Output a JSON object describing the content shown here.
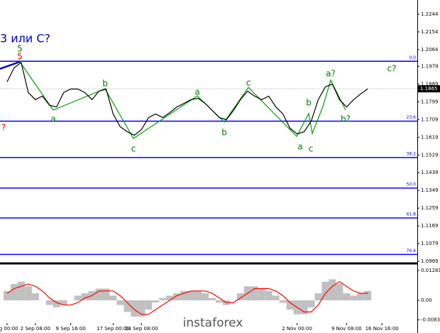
{
  "chart_data": [
    {
      "type": "line",
      "series": [
        {
          "color": "#000000",
          "values": [
            1.19,
            1.1972,
            1.1998,
            1.1846,
            1.181,
            1.1828,
            1.1781,
            1.1773,
            1.1846,
            1.1864,
            1.1864,
            1.1846,
            1.181,
            1.1853,
            1.1864,
            1.1737,
            1.1672,
            1.1647,
            1.1629,
            1.1658,
            1.1719,
            1.1737,
            1.1719,
            1.1744,
            1.1773,
            1.1791,
            1.181,
            1.1817,
            1.1791,
            1.1755,
            1.1719,
            1.1708,
            1.1755,
            1.181,
            1.1853,
            1.1828,
            1.181,
            1.1828,
            1.1773,
            1.1737,
            1.1665,
            1.1636,
            1.1647,
            1.1701,
            1.181,
            1.1875,
            1.1889,
            1.181,
            1.1773,
            1.181,
            1.1839,
            1.1865
          ]
        }
      ],
      "ylim": [
        1.0982,
        1.2316
      ],
      "yticks": [
        1.2244,
        1.2154,
        1.2064,
        1.1979,
        1.1889,
        1.1799,
        1.1709,
        1.1619,
        1.1529,
        1.1439,
        1.1349,
        1.1259,
        1.1169,
        1.1079,
        1.0989
      ],
      "xlim": [
        -1,
        58
      ],
      "xticks": [
        {
          "value": 0,
          "label": "ug 00:00"
        },
        {
          "value": 4,
          "label": "2 Sep 08:00"
        },
        {
          "value": 9,
          "label": "9 Sep 16:00"
        },
        {
          "value": 15,
          "label": "17 Sep 00:00"
        },
        {
          "value": 19,
          "label": "24 Sep 08:00"
        },
        {
          "value": 41,
          "label": "2 Nov 00:00"
        },
        {
          "value": 48,
          "label": "9 Nov 08:00"
        },
        {
          "value": 53,
          "label": "16 Nov 16:00"
        }
      ],
      "last_price": 1.1865,
      "fib_color": "#0000ff",
      "fib_levels": [
        {
          "value": 1.2005,
          "label": "0.0"
        },
        {
          "value": 1.1701,
          "label": "23.6"
        },
        {
          "value": 1.1516,
          "label": "38.2"
        },
        {
          "value": 1.1361,
          "label": "50.0"
        },
        {
          "value": 1.1209,
          "label": "61.8"
        },
        {
          "value": 1.1024,
          "label": "76.4"
        }
      ],
      "annotations": [
        {
          "text": "3 или C?",
          "color": "#0000cc"
        },
        {
          "text": "5",
          "color": "#008000"
        },
        {
          "text": "5",
          "color": "#ff0000"
        },
        {
          "text": "?",
          "color": "#ff0000"
        },
        {
          "text": "a",
          "color": "#008000"
        },
        {
          "text": "b",
          "color": "#008000"
        },
        {
          "text": "c",
          "color": "#008000"
        },
        {
          "text": "a",
          "color": "#008000"
        },
        {
          "text": "b",
          "color": "#008000"
        },
        {
          "text": "c",
          "color": "#008000"
        },
        {
          "text": "b",
          "color": "#008000"
        },
        {
          "text": "a",
          "color": "#008000"
        },
        {
          "text": "c",
          "color": "#008000"
        },
        {
          "text": "a?",
          "color": "#008000"
        },
        {
          "text": "b?",
          "color": "#008000"
        },
        {
          "text": "c?",
          "color": "#008000"
        }
      ]
    },
    {
      "type": "bar",
      "series": [
        {
          "color": "#c0c0c0",
          "values": [
            0.004,
            0.007,
            0.008,
            0.006,
            0.003,
            0.0,
            -0.002,
            -0.003,
            -0.002,
            0.0,
            0.002,
            0.003,
            0.004,
            0.005,
            0.005,
            0.002,
            -0.002,
            -0.005,
            -0.007,
            -0.007,
            -0.004,
            -0.001,
            0.001,
            0.002,
            0.003,
            0.004,
            0.004,
            0.004,
            0.003,
            0.001,
            -0.001,
            -0.002,
            0.0,
            0.003,
            0.006,
            0.006,
            0.005,
            0.004,
            0.002,
            -0.001,
            -0.004,
            -0.006,
            -0.006,
            -0.003,
            0.003,
            0.008,
            0.009,
            0.007,
            0.003,
            0.002,
            0.003,
            0.004
          ]
        },
        {
          "color": "#ff0000",
          "values": [
            0.003,
            0.005,
            0.006,
            0.007,
            0.006,
            0.004,
            0.001,
            -0.001,
            -0.002,
            -0.002,
            -0.001,
            0.001,
            0.002,
            0.004,
            0.004,
            0.004,
            0.002,
            -0.001,
            -0.004,
            -0.006,
            -0.006,
            -0.004,
            -0.002,
            0.0,
            0.002,
            0.003,
            0.004,
            0.004,
            0.004,
            0.003,
            0.001,
            -0.001,
            -0.001,
            0.001,
            0.003,
            0.005,
            0.005,
            0.005,
            0.004,
            0.002,
            -0.001,
            -0.003,
            -0.005,
            -0.005,
            -0.002,
            0.003,
            0.006,
            0.008,
            0.006,
            0.004,
            0.003,
            0.003
          ]
        }
      ],
      "ylim": [
        -0.014,
        0.0155
      ],
      "yticks": [
        0.01281,
        {
          "value": 0,
          "label": "0.00"
        },
        -0.00836
      ]
    }
  ],
  "watermark": "instaforex"
}
